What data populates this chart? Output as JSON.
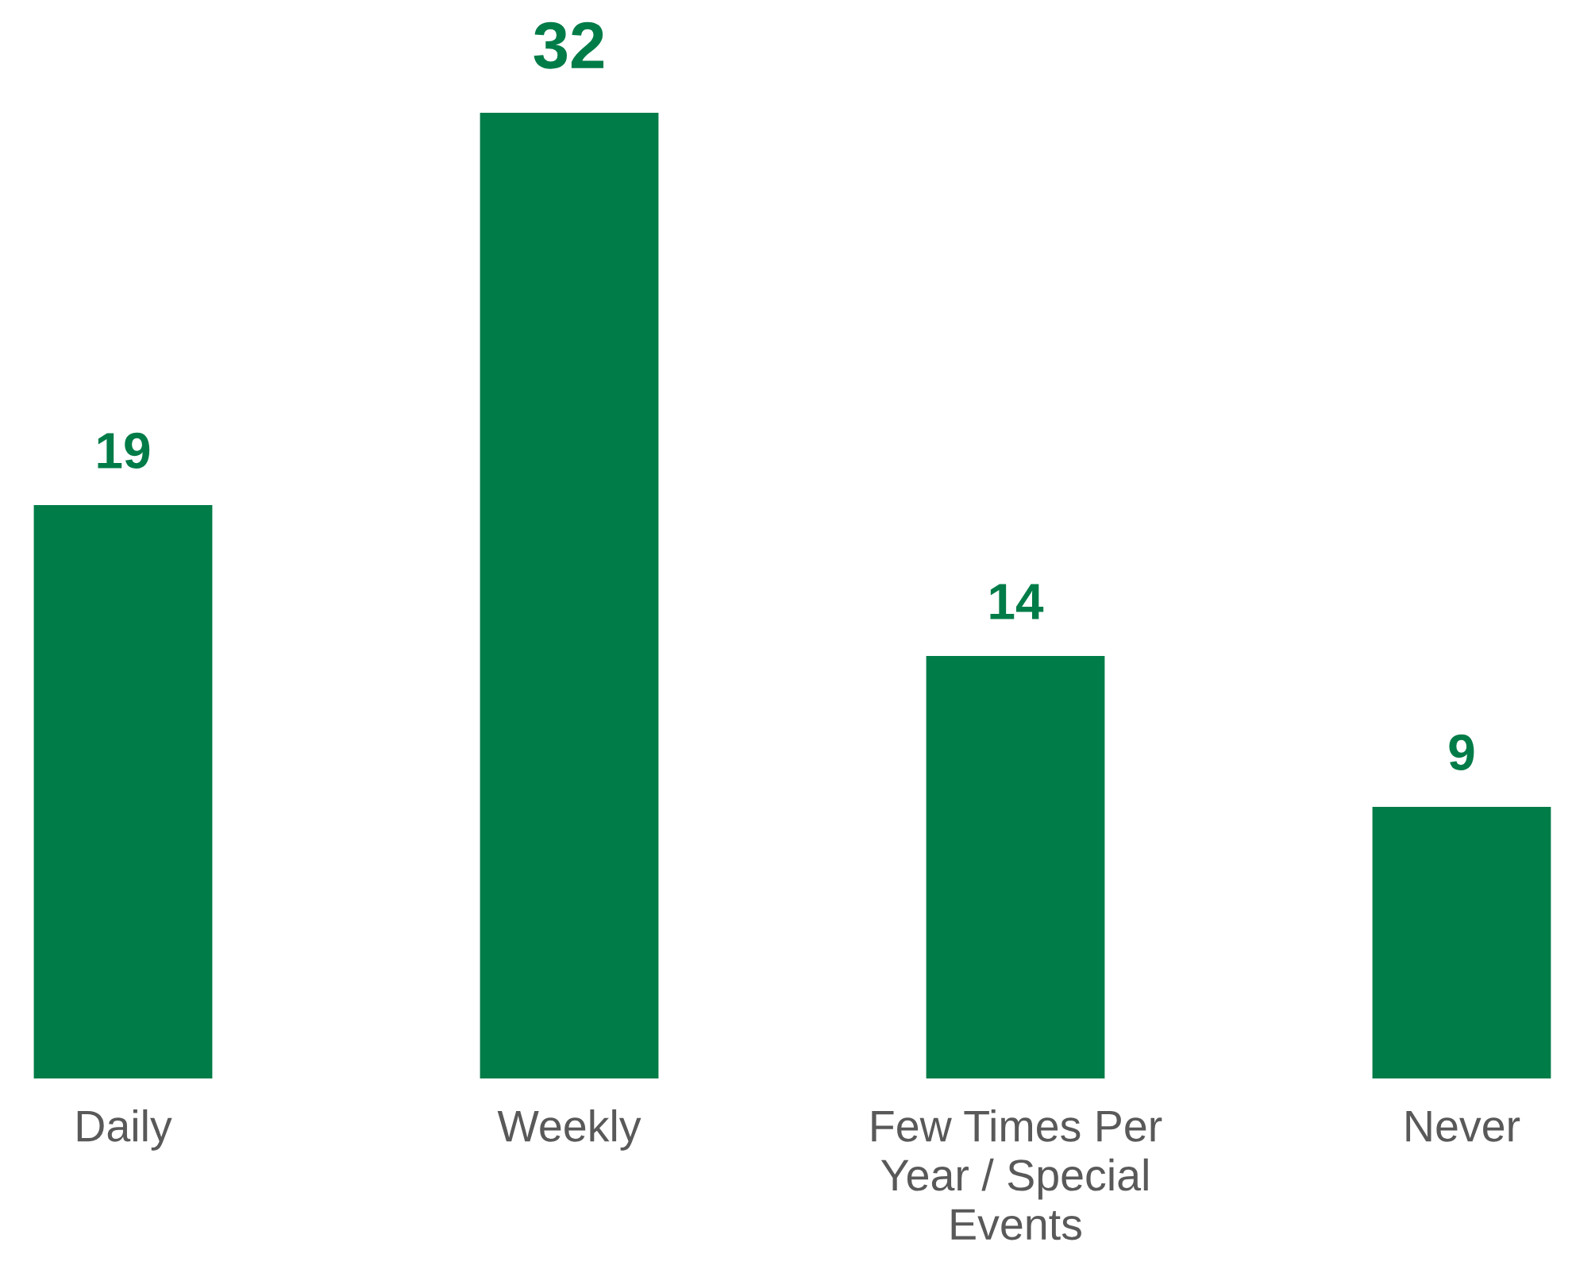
{
  "chart_data": {
    "type": "bar",
    "categories": [
      "Daily",
      "Weekly",
      "Few Times Per\nYear / Special\nEvents",
      "Never"
    ],
    "values": [
      19,
      32,
      14,
      9
    ],
    "color": "#007c48",
    "data_labels": true,
    "grid": false,
    "legend": false
  }
}
